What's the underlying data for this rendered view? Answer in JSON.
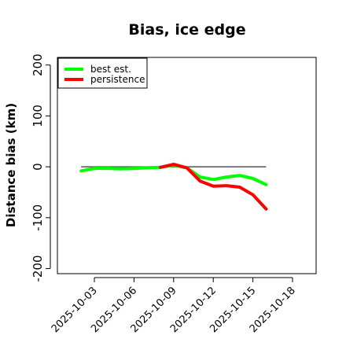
{
  "chart_data": {
    "type": "line",
    "title": "Bias, ice edge",
    "xlabel": "",
    "ylabel": "Distance bias (km)",
    "xlim": [
      "2025-10-01",
      "2025-10-19"
    ],
    "ylim": [
      -210,
      215
    ],
    "yticks": [
      -200,
      -100,
      0,
      100,
      200
    ],
    "yticklabels": [
      "-200",
      "-100",
      "0",
      "100",
      "200"
    ],
    "xticks": [
      "2025-10-03",
      "2025-10-06",
      "2025-10-09",
      "2025-10-12",
      "2025-10-15",
      "2025-10-18"
    ],
    "xticklabels": [
      "2025-10-03",
      "2025-10-06",
      "2025-10-09",
      "2025-10-12",
      "2025-10-15",
      "2025-10-18"
    ],
    "grid": false,
    "legend_position": "top-left",
    "reference_line": {
      "y": 0,
      "x_start": "2025-10-02",
      "x_end": "2025-10-16",
      "color": "#555555"
    },
    "series": [
      {
        "name": "best est.",
        "color": "#00ff00",
        "x": [
          "2025-10-02",
          "2025-10-03",
          "2025-10-04",
          "2025-10-05",
          "2025-10-06",
          "2025-10-07",
          "2025-10-08",
          "2025-10-09",
          "2025-10-10",
          "2025-10-11",
          "2025-10-12",
          "2025-10-13",
          "2025-10-14",
          "2025-10-15",
          "2025-10-16"
        ],
        "values": [
          -8,
          -3,
          -3,
          -4,
          -3,
          -2,
          -1,
          3,
          -2,
          -20,
          -25,
          -20,
          -17,
          -23,
          -35
        ]
      },
      {
        "name": "persistence",
        "color": "#ff0000",
        "x": [
          "2025-10-08",
          "2025-10-09",
          "2025-10-10",
          "2025-10-11",
          "2025-10-12",
          "2025-10-13",
          "2025-10-14",
          "2025-10-15",
          "2025-10-16"
        ],
        "values": [
          -1,
          5,
          -2,
          -28,
          -38,
          -37,
          -40,
          -55,
          -83
        ]
      }
    ]
  }
}
